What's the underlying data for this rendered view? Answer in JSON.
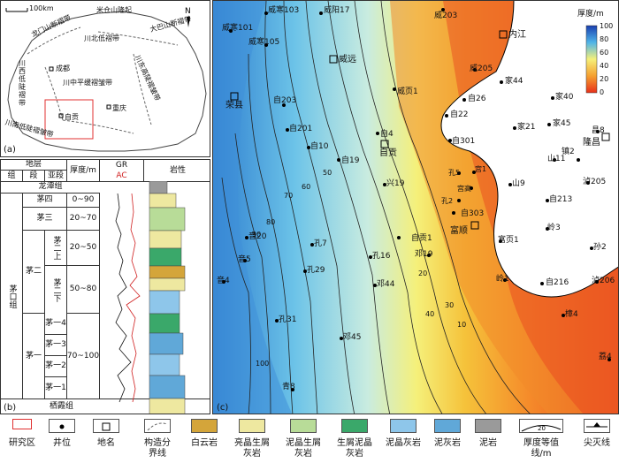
{
  "panel_a": {
    "label": "(a)",
    "scale": "100km",
    "faults": [
      "龙门山断褶带",
      "川北低褶带",
      "米仓山隆起",
      "大巴山断褶带",
      "川西低陡褶带",
      "川中平缓褶皱带",
      "川东高陡褶皱带",
      "川南低陡褶皱带"
    ],
    "cities": [
      "成都",
      "自贡",
      "重庆"
    ]
  },
  "panel_b": {
    "label": "(b)",
    "headers": {
      "stratum": "地层",
      "group": "组",
      "section": "段",
      "subsection": "亚段",
      "thickness": "厚度/m",
      "gr": "GR",
      "ac": "AC",
      "lith": "岩性"
    },
    "longtan": "龙潭组",
    "maokou": "茅口组",
    "qixia": "栖霞组",
    "rows": [
      {
        "sub": "茅四",
        "thk": "0~90"
      },
      {
        "sub": "茅三",
        "thk": "20~70"
      },
      {
        "sub": "茅二上",
        "thk": "20~50"
      },
      {
        "sub": "茅二下",
        "thk": "50~80"
      },
      {
        "sub": "茅一4",
        "thk": ""
      },
      {
        "sub": "茅一3",
        "thk": "70~100"
      },
      {
        "sub": "茅一2",
        "thk": ""
      },
      {
        "sub": "茅一1",
        "thk": ""
      }
    ],
    "section2": "茅二",
    "section1": "茅一",
    "sub2a": "茅二上",
    "sub2b": "茅二下"
  },
  "panel_c": {
    "label": "(c)",
    "colorbar": {
      "title": "厚度/m",
      "ticks": [
        "100",
        "80",
        "60",
        "40",
        "20",
        "0"
      ]
    },
    "wells": [
      "威寒103",
      "威阳17",
      "威203",
      "威寒101",
      "威寒105",
      "内江",
      "威远",
      "威205",
      "家44",
      "威页1",
      "家40",
      "自26",
      "自22",
      "家45",
      "昌8",
      "自203",
      "自201",
      "自4",
      "家21",
      "隆昌",
      "自301",
      "自10",
      "自19",
      "自贡",
      "山11",
      "镇2",
      "孔5",
      "宫1",
      "宫高",
      "山9",
      "兴19",
      "泸205",
      "孔2",
      "自303",
      "自213",
      "自贡1",
      "富顺",
      "富页1",
      "岭3",
      "音20",
      "孔7",
      "邓19",
      "音5",
      "孔16",
      "孙2",
      "孔29",
      "邓44",
      "岭1",
      "自216",
      "泸206",
      "音4",
      "孔31",
      "邓45",
      "樟4",
      "荔4",
      "青8",
      "荣县"
    ],
    "contours": [
      "10",
      "20",
      "30",
      "40",
      "50",
      "60",
      "70",
      "80",
      "90",
      "100"
    ]
  },
  "legend": [
    {
      "name": "研究区",
      "color": "#ffffff"
    },
    {
      "name": "井位",
      "color": "#ffffff"
    },
    {
      "name": "地名",
      "color": "#ffffff"
    },
    {
      "name": "构造分界线",
      "color": "#ffffff"
    },
    {
      "name": "白云岩",
      "color": "#d4a53a"
    },
    {
      "name": "亮晶生屑灰岩",
      "color": "#eee8a0"
    },
    {
      "name": "泥晶生屑灰岩",
      "color": "#b8dc98"
    },
    {
      "name": "生屑泥晶灰岩",
      "color": "#3aa86a"
    },
    {
      "name": "泥晶灰岩",
      "color": "#8ec6ea"
    },
    {
      "name": "泥灰岩",
      "color": "#60a8d8"
    },
    {
      "name": "泥岩",
      "color": "#9a9a9a"
    },
    {
      "name": "厚度等值线/m",
      "color": "#ffffff"
    },
    {
      "name": "尖灭线",
      "color": "#ffffff"
    }
  ]
}
